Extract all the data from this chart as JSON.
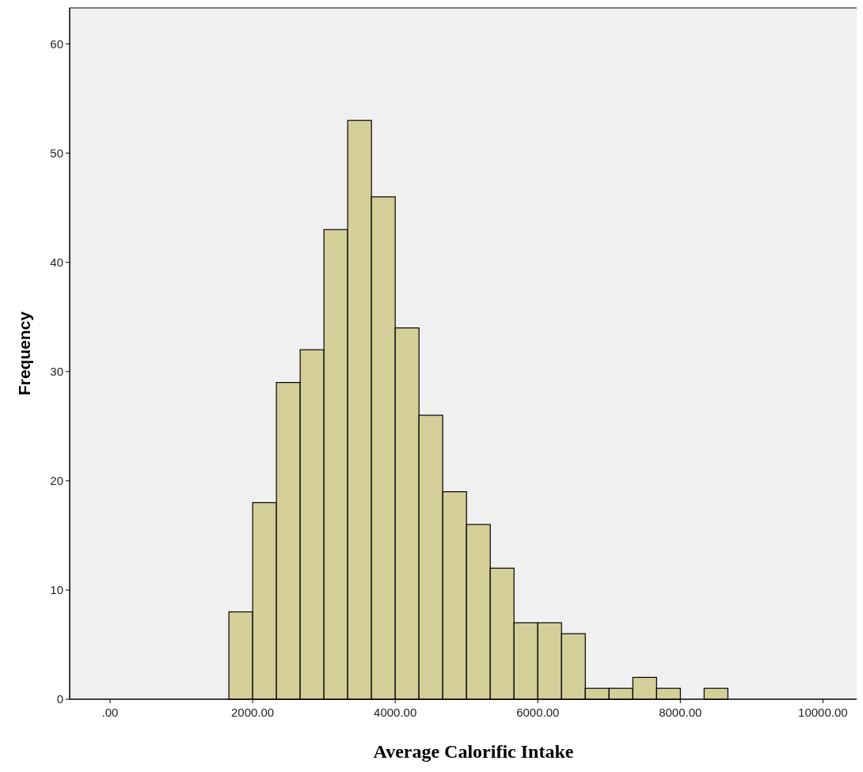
{
  "chart_data": {
    "type": "histogram",
    "xlabel": "Average Calorific Intake",
    "ylabel": "Frequency",
    "bins": [
      1666.67,
      2000,
      2333.33,
      2666.67,
      3000,
      3333.33,
      3666.67,
      4000,
      4333.33,
      4666.67,
      5000,
      5333.33,
      5666.67,
      6000,
      6333.33,
      6666.67,
      7000,
      7333.33,
      7666.67,
      8000,
      8333.33,
      8666.67
    ],
    "values": [
      8,
      18,
      29,
      32,
      43,
      53,
      46,
      34,
      26,
      19,
      16,
      12,
      7,
      7,
      6,
      1,
      1,
      2,
      1,
      0,
      1
    ],
    "color": "#d4cf98",
    "xlim": [
      -567,
      10540
    ],
    "ylim": [
      0,
      63.3
    ],
    "xticks": [
      {
        "value": 0,
        "label": ".00"
      },
      {
        "value": 2000,
        "label": "2000.00"
      },
      {
        "value": 4000,
        "label": "4000.00"
      },
      {
        "value": 6000,
        "label": "6000.00"
      },
      {
        "value": 8000,
        "label": "8000.00"
      },
      {
        "value": 10000,
        "label": "10000.00"
      }
    ],
    "yticks": [
      0,
      10,
      20,
      30,
      40,
      50,
      60
    ],
    "grid": false
  }
}
